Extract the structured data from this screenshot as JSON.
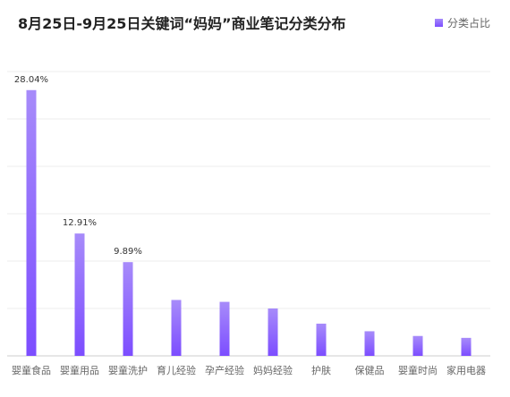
{
  "chart_data": {
    "type": "bar",
    "title": "8月25日-9月25日关键词“妈妈”商业笔记分类分布",
    "legend": {
      "label": "分类占比",
      "position": "top-right"
    },
    "categories": [
      "婴童食品",
      "婴童用品",
      "婴童洗护",
      "育儿经验",
      "孕产经验",
      "妈妈经验",
      "护肤",
      "保健品",
      "婴童时尚",
      "家用电器"
    ],
    "series": [
      {
        "name": "分类占比",
        "values": [
          28.04,
          12.91,
          9.89,
          5.9,
          5.7,
          5.0,
          3.4,
          2.6,
          2.1,
          1.9
        ]
      }
    ],
    "data_labels": [
      "28.04%",
      "12.91%",
      "9.89%",
      "",
      "",
      "",
      "",
      "",
      "",
      ""
    ],
    "ylim": [
      0,
      30
    ],
    "grid": true,
    "colors": {
      "bar_top": "#a78bfa",
      "bar_bottom": "#7c4dff",
      "grid": "#eeeeee",
      "axis": "#cccccc"
    }
  }
}
